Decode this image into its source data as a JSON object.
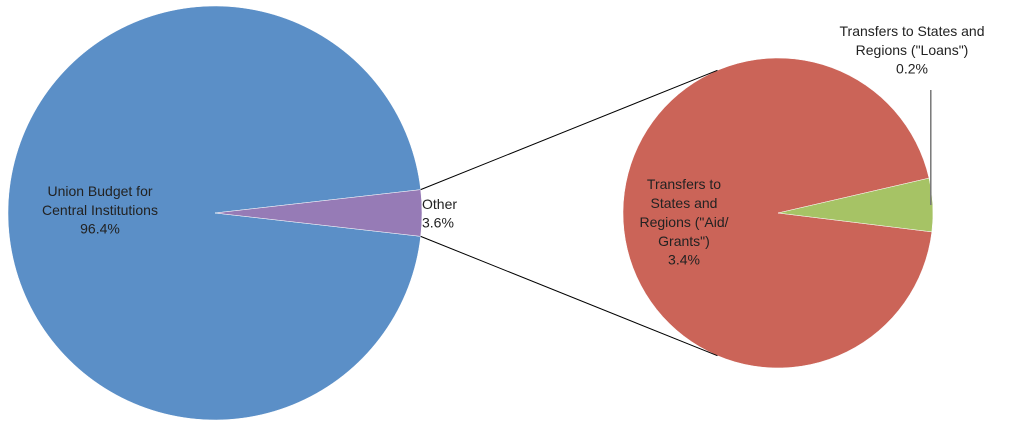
{
  "chart_data": [
    {
      "type": "pie",
      "categories": [
        "Union Budget for Central Institutions",
        "Other"
      ],
      "values": [
        96.4,
        3.6
      ],
      "value_labels": [
        "96.4%",
        "3.6%"
      ],
      "colors": [
        "#5b8fc7",
        "#967bb6"
      ]
    },
    {
      "type": "pie",
      "categories": [
        "Transfers to States and Regions (\"Aid/Grants\")",
        "Transfers to States and Regions (\"Loans\")"
      ],
      "values": [
        3.4,
        0.2
      ],
      "value_labels": [
        "3.4%",
        "0.2%"
      ],
      "colors": [
        "#cb6458",
        "#a6c365"
      ]
    }
  ]
}
